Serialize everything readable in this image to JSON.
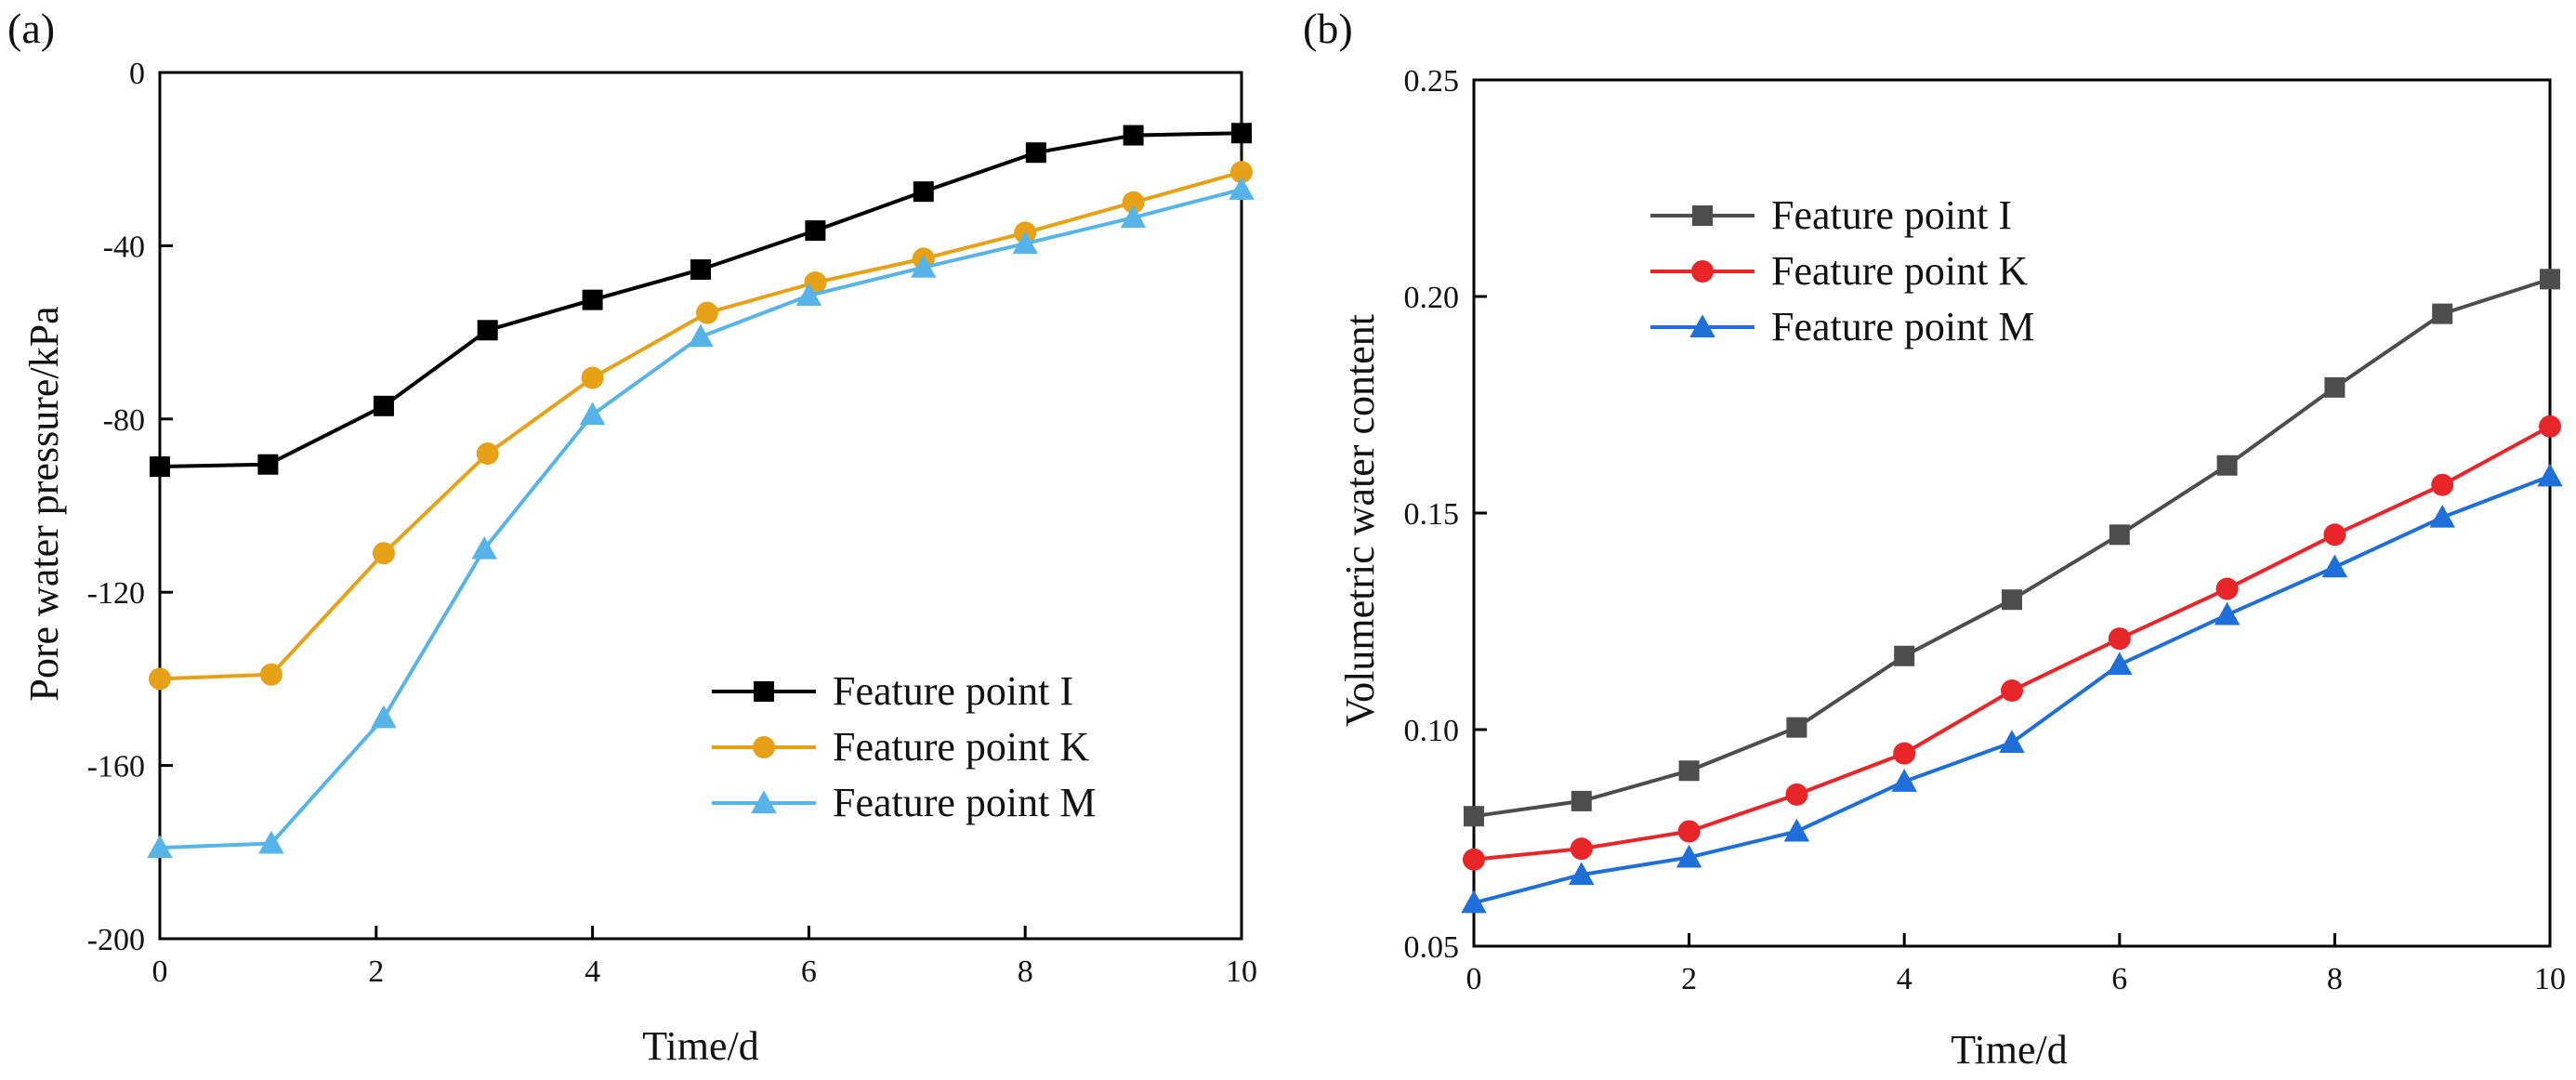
{
  "chart_data": [
    {
      "type": "line",
      "panel_label": "(a)",
      "title": "",
      "xlabel": "Time/d",
      "ylabel": "Pore water pressure/kPa",
      "xlim": [
        0,
        10
      ],
      "ylim": [
        -200,
        0
      ],
      "x_ticks": [
        0,
        2,
        4,
        6,
        8,
        10
      ],
      "y_ticks": [
        0,
        -40,
        -80,
        -120,
        -160,
        -200
      ],
      "x_tick_labels": [
        "0",
        "2",
        "4",
        "6",
        "8",
        "10"
      ],
      "y_tick_labels": [
        "0",
        "-40",
        "-80",
        "-120",
        "-160",
        "-200"
      ],
      "legend_position": "bottom-right",
      "series": [
        {
          "name": "Feature point I",
          "color": "#000000",
          "marker": "square",
          "x": [
            0,
            1,
            2.07,
            3.03,
            4,
            5,
            6.06,
            7.06,
            8.1,
            9,
            10
          ],
          "y": [
            -91,
            -90.5,
            -77,
            -59.5,
            -52.5,
            -45.5,
            -36.5,
            -27.5,
            -18.5,
            -14.5,
            -14
          ]
        },
        {
          "name": "Feature point K",
          "color": "#E6A117",
          "marker": "circle",
          "x": [
            0,
            1.03,
            2.07,
            3.03,
            4,
            5.06,
            6.06,
            7.06,
            8,
            9,
            10
          ],
          "y": [
            -140,
            -139,
            -111,
            -88,
            -70.5,
            -55.5,
            -48.5,
            -43,
            -37,
            -30,
            -23
          ]
        },
        {
          "name": "Feature point M",
          "color": "#56B4E9",
          "marker": "triangle",
          "x": [
            0,
            1.03,
            2.07,
            3,
            4,
            5,
            6,
            7.06,
            8,
            9,
            10
          ],
          "y": [
            -179,
            -178,
            -149,
            -110,
            -79,
            -61,
            -51.5,
            -45,
            -39.5,
            -33.5,
            -27
          ]
        }
      ]
    },
    {
      "type": "line",
      "panel_label": "(b)",
      "title": "",
      "xlabel": "Time/d",
      "ylabel": "Volumetric water content",
      "xlim": [
        0,
        10
      ],
      "ylim": [
        0.05,
        0.25
      ],
      "x_ticks": [
        0,
        2,
        4,
        6,
        8,
        10
      ],
      "y_ticks": [
        0.05,
        0.1,
        0.15,
        0.2,
        0.25
      ],
      "x_tick_labels": [
        "0",
        "2",
        "4",
        "6",
        "8",
        "10"
      ],
      "y_tick_labels": [
        "0.05",
        "0.10",
        "0.15",
        "0.20",
        "0.25"
      ],
      "legend_position": "top-left",
      "series": [
        {
          "name": "Feature point I",
          "color": "#4D4D4D",
          "marker": "square",
          "x": [
            0,
            1,
            2,
            3,
            4,
            5,
            6,
            7,
            8,
            9,
            10
          ],
          "y": [
            0.08,
            0.0835,
            0.0905,
            0.1005,
            0.117,
            0.13,
            0.145,
            0.161,
            0.179,
            0.196,
            0.204
          ]
        },
        {
          "name": "Feature point K",
          "color": "#E8262A",
          "marker": "circle",
          "x": [
            0,
            1,
            2,
            3,
            4,
            5,
            6,
            7,
            8,
            9,
            10
          ],
          "y": [
            0.07,
            0.0725,
            0.0765,
            0.085,
            0.0945,
            0.109,
            0.121,
            0.1325,
            0.145,
            0.1565,
            0.17
          ]
        },
        {
          "name": "Feature point M",
          "color": "#1E6FD9",
          "marker": "triangle",
          "x": [
            0,
            1,
            2,
            3,
            4,
            5,
            6,
            7,
            8,
            9,
            10
          ],
          "y": [
            0.06,
            0.0665,
            0.0705,
            0.0765,
            0.088,
            0.097,
            0.115,
            0.1265,
            0.1375,
            0.149,
            0.1585
          ]
        }
      ]
    }
  ]
}
